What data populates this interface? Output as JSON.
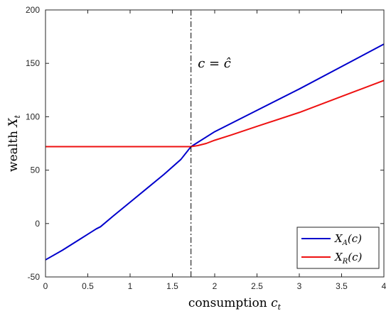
{
  "chart_data": {
    "type": "line",
    "title": "",
    "xlabel": "consumption",
    "xlabel_var": "c",
    "xlabel_sub": "t",
    "ylabel": "wealth",
    "ylabel_var": "X",
    "ylabel_sub": "t",
    "xlim": [
      0,
      4
    ],
    "ylim": [
      -50,
      200
    ],
    "xticks": [
      0,
      0.5,
      1,
      1.5,
      2,
      2.5,
      3,
      3.5,
      4
    ],
    "xtick_labels": [
      "0",
      "0.5",
      "1",
      "1.5",
      "2",
      "2.5",
      "3",
      "3.5",
      "4"
    ],
    "yticks": [
      -50,
      0,
      50,
      100,
      150,
      200
    ],
    "ytick_labels": [
      "-50",
      "0",
      "50",
      "100",
      "150",
      "200"
    ],
    "grid": false,
    "legend_position": "bottom-right",
    "vline": {
      "x": 1.72,
      "style": "dash-dot",
      "color": "#000000"
    },
    "annotation": {
      "text": "c = ĉ",
      "x": 1.8,
      "y": 150
    },
    "series": [
      {
        "name": "X_A(c)",
        "legend_var": "X",
        "legend_sub": "A",
        "legend_arg": "(c)",
        "color": "#0000cc",
        "x": [
          0,
          0.2,
          0.4,
          0.6,
          0.65,
          0.8,
          1.0,
          1.2,
          1.4,
          1.6,
          1.72,
          2.0,
          2.5,
          3.0,
          3.5,
          4.0
        ],
        "y": [
          -34,
          -25,
          -15,
          -5,
          -3,
          7,
          20,
          33,
          46,
          60,
          72,
          86,
          106,
          126,
          147,
          168
        ]
      },
      {
        "name": "X_R(c)",
        "legend_var": "X",
        "legend_sub": "R",
        "legend_arg": "(c)",
        "color": "#ee1111",
        "x": [
          0,
          0.5,
          1.0,
          1.5,
          1.72,
          1.8,
          1.9,
          2.0,
          2.2,
          2.5,
          3.0,
          3.5,
          4.0
        ],
        "y": [
          72,
          72,
          72,
          72,
          72,
          73,
          75,
          78,
          83,
          91,
          104,
          119,
          134
        ]
      }
    ]
  }
}
